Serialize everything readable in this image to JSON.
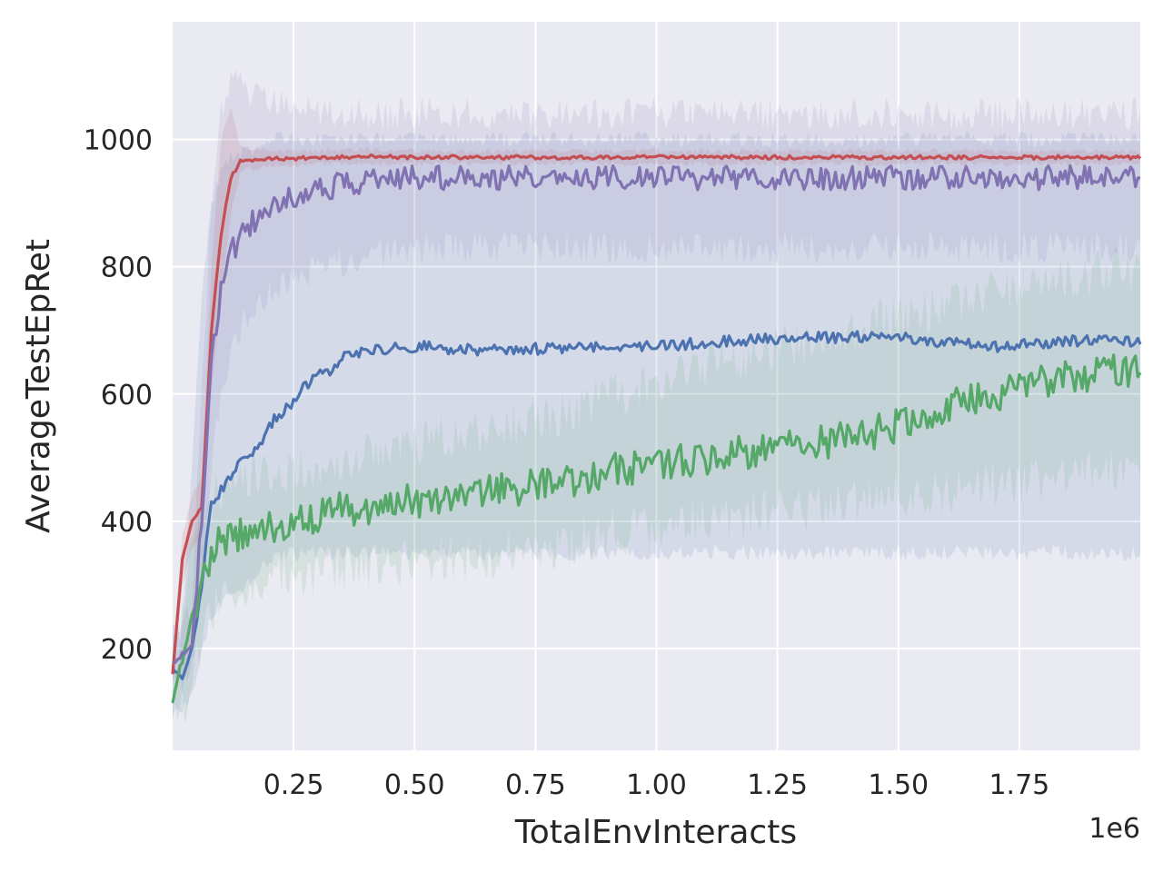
{
  "chart_data": {
    "type": "line",
    "title": "",
    "xlabel": "TotalEnvInteracts",
    "ylabel": "AverageTestEpRet",
    "x_offset_label": "1e6",
    "xlim": [
      0.0,
      2.0
    ],
    "ylim": [
      40,
      1185
    ],
    "grid": true,
    "legend": "none",
    "background": "#eaeaf2",
    "x_ticks": [
      0.25,
      0.5,
      0.75,
      1.0,
      1.25,
      1.5,
      1.75
    ],
    "x_tick_labels": [
      "0.25",
      "0.50",
      "0.75",
      "1.00",
      "1.25",
      "1.50",
      "1.75"
    ],
    "y_ticks": [
      200,
      400,
      600,
      800,
      1000
    ],
    "y_tick_labels": [
      "200",
      "400",
      "600",
      "800",
      "1000"
    ],
    "series": [
      {
        "color": "#4c72b0",
        "x": [
          0.0,
          0.02,
          0.04,
          0.06,
          0.08,
          0.1,
          0.12,
          0.15,
          0.18,
          0.21,
          0.24,
          0.27,
          0.3,
          0.33,
          0.36,
          0.4,
          0.45,
          0.5,
          0.6,
          0.7,
          0.8,
          0.9,
          1.0,
          1.1,
          1.2,
          1.3,
          1.4,
          1.5,
          1.6,
          1.7,
          1.8,
          1.9,
          2.0
        ],
        "y": [
          170,
          150,
          200,
          300,
          430,
          450,
          470,
          500,
          520,
          560,
          580,
          610,
          630,
          640,
          660,
          670,
          670,
          675,
          670,
          670,
          672,
          675,
          675,
          680,
          685,
          688,
          690,
          690,
          680,
          675,
          680,
          685,
          680
        ],
        "band_low": [
          100,
          100,
          120,
          200,
          250,
          270,
          280,
          300,
          320,
          340,
          350,
          350,
          350,
          350,
          350,
          350,
          350,
          350,
          350,
          350,
          350,
          350,
          350,
          350,
          350,
          350,
          350,
          350,
          350,
          350,
          350,
          350,
          350
        ],
        "band_high": [
          230,
          240,
          500,
          750,
          900,
          950,
          970,
          980,
          990,
          1000,
          1000,
          1000,
          1000,
          1000,
          1000,
          1000,
          1000,
          1000,
          1000,
          1000,
          1000,
          1000,
          1000,
          1000,
          1000,
          1000,
          1000,
          1000,
          1000,
          1000,
          1000,
          1000,
          1000
        ]
      },
      {
        "color": "#55a868",
        "x": [
          0.0,
          0.02,
          0.04,
          0.06,
          0.08,
          0.1,
          0.15,
          0.2,
          0.25,
          0.3,
          0.35,
          0.4,
          0.45,
          0.5,
          0.6,
          0.7,
          0.8,
          0.9,
          1.0,
          1.1,
          1.2,
          1.3,
          1.4,
          1.5,
          1.6,
          1.7,
          1.8,
          1.9,
          2.0
        ],
        "y": [
          120,
          180,
          250,
          300,
          340,
          370,
          380,
          390,
          400,
          410,
          420,
          420,
          430,
          430,
          440,
          450,
          460,
          480,
          490,
          500,
          510,
          520,
          530,
          550,
          580,
          600,
          620,
          630,
          640
        ],
        "band_low": [
          100,
          110,
          150,
          200,
          250,
          280,
          300,
          310,
          320,
          320,
          330,
          330,
          330,
          340,
          340,
          350,
          360,
          380,
          390,
          400,
          410,
          420,
          430,
          440,
          450,
          460,
          470,
          480,
          490
        ],
        "band_high": [
          160,
          250,
          350,
          400,
          430,
          450,
          460,
          470,
          480,
          490,
          500,
          510,
          520,
          520,
          540,
          550,
          570,
          600,
          620,
          640,
          660,
          680,
          700,
          720,
          740,
          760,
          780,
          790,
          800
        ]
      },
      {
        "color": "#c44e52",
        "x": [
          0.0,
          0.02,
          0.04,
          0.06,
          0.08,
          0.1,
          0.12,
          0.14,
          0.16,
          0.2,
          0.25,
          0.3,
          0.4,
          0.5,
          0.6,
          0.8,
          1.0,
          1.2,
          1.4,
          1.6,
          1.8,
          2.0
        ],
        "y": [
          160,
          340,
          400,
          420,
          700,
          850,
          940,
          965,
          968,
          970,
          970,
          972,
          973,
          972,
          972,
          972,
          972,
          972,
          972,
          972,
          972,
          972
        ],
        "band_low": [
          140,
          300,
          360,
          380,
          600,
          760,
          880,
          950,
          955,
          958,
          960,
          962,
          962,
          962,
          962,
          962,
          962,
          962,
          962,
          962,
          962,
          962
        ],
        "band_high": [
          180,
          380,
          440,
          470,
          800,
          1000,
          1050,
          990,
          982,
          982,
          982,
          982,
          984,
          982,
          982,
          982,
          982,
          982,
          982,
          982,
          982,
          982
        ]
      },
      {
        "color": "#8172b2",
        "x": [
          0.0,
          0.02,
          0.04,
          0.06,
          0.08,
          0.1,
          0.12,
          0.15,
          0.2,
          0.25,
          0.3,
          0.35,
          0.4,
          0.5,
          0.6,
          0.8,
          1.0,
          1.2,
          1.4,
          1.6,
          1.8,
          2.0
        ],
        "y": [
          180,
          190,
          210,
          400,
          650,
          760,
          820,
          860,
          890,
          910,
          920,
          930,
          935,
          940,
          940,
          940,
          940,
          940,
          940,
          940,
          940,
          940
        ],
        "band_low": [
          140,
          150,
          160,
          300,
          500,
          600,
          680,
          720,
          760,
          780,
          800,
          810,
          820,
          830,
          830,
          830,
          830,
          830,
          830,
          830,
          830,
          830
        ],
        "band_high": [
          220,
          230,
          280,
          600,
          900,
          1050,
          1100,
          1080,
          1060,
          1050,
          1040,
          1040,
          1040,
          1040,
          1040,
          1040,
          1040,
          1040,
          1040,
          1040,
          1040,
          1040
        ]
      }
    ]
  }
}
